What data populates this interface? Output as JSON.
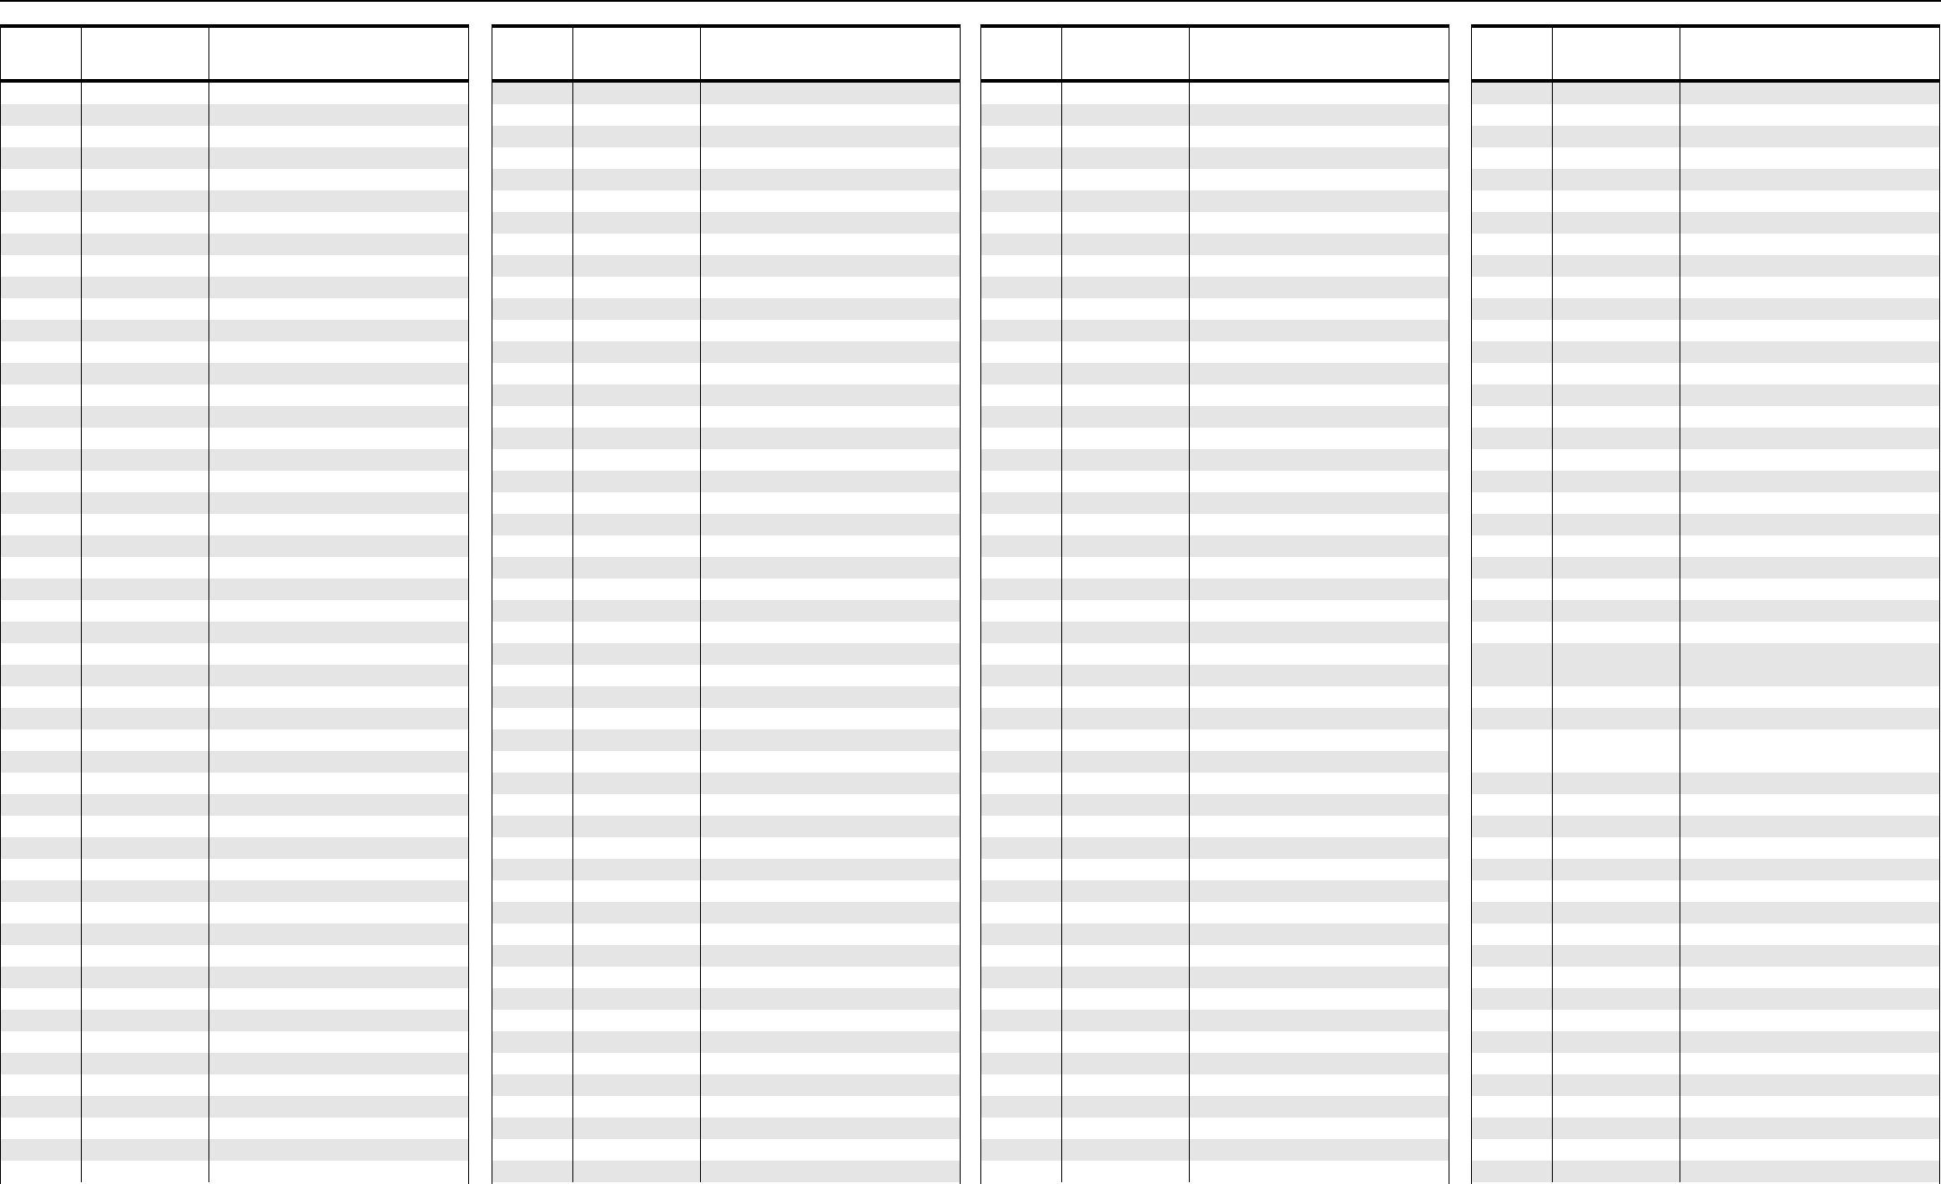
{
  "colors": {
    "stripe": "#e5e5e5",
    "background": "#ffffff",
    "rule": "#000000"
  },
  "tables": [
    {
      "columns": [
        "",
        "",
        ""
      ],
      "first_row_striped": false,
      "rows": 51,
      "tall_rows": []
    },
    {
      "columns": [
        "",
        "",
        ""
      ],
      "first_row_striped": true,
      "rows": 51,
      "tall_rows": []
    },
    {
      "columns": [
        "",
        "",
        ""
      ],
      "first_row_striped": false,
      "rows": 51,
      "tall_rows": []
    },
    {
      "columns": [
        "",
        "",
        ""
      ],
      "first_row_striped": true,
      "rows": 49,
      "tall_rows": [
        26,
        29
      ]
    }
  ]
}
